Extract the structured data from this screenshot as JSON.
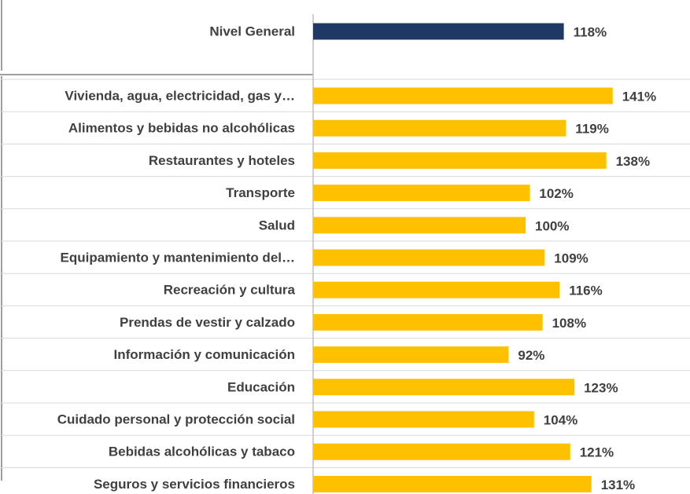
{
  "chart_data": {
    "type": "bar",
    "orientation": "horizontal",
    "categories": [
      "Nivel General",
      "Vivienda, agua, electricidad, gas y…",
      "Alimentos y bebidas no alcohólicas",
      "Restaurantes y hoteles",
      "Transporte",
      "Salud",
      "Equipamiento y mantenimiento del…",
      "Recreación y cultura",
      "Prendas de vestir y calzado",
      "Información y comunicación",
      "Educación",
      "Cuidado personal y protección social",
      "Bebidas alcohólicas y tabaco",
      "Seguros y servicios financieros"
    ],
    "values": [
      118,
      141,
      119,
      138,
      102,
      100,
      109,
      116,
      108,
      92,
      123,
      104,
      121,
      131
    ],
    "value_labels": [
      "118%",
      "141%",
      "119%",
      "138%",
      "102%",
      "100%",
      "109%",
      "116%",
      "108%",
      "92%",
      "123%",
      "104%",
      "121%",
      "131%"
    ],
    "colors": [
      "#1f3864",
      "#ffc000",
      "#ffc000",
      "#ffc000",
      "#ffc000",
      "#ffc000",
      "#ffc000",
      "#ffc000",
      "#ffc000",
      "#ffc000",
      "#ffc000",
      "#ffc000",
      "#ffc000",
      "#ffc000"
    ]
  }
}
